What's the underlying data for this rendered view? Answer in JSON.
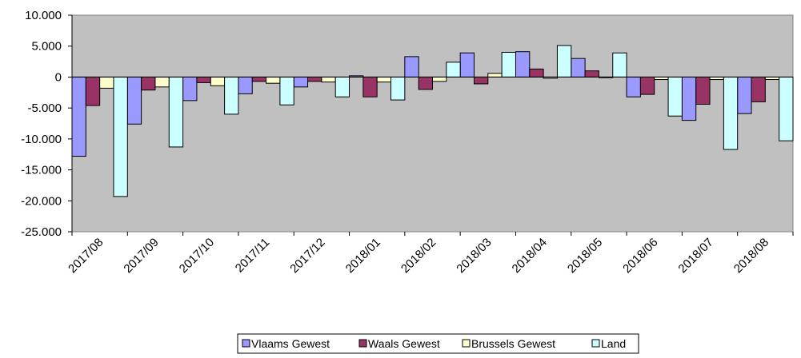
{
  "chart_data": {
    "type": "bar",
    "categories": [
      "2017/08",
      "2017/09",
      "2017/10",
      "2017/11",
      "2017/12",
      "2018/01",
      "2018/02",
      "2018/03",
      "2018/04",
      "2018/05",
      "2018/06",
      "2018/07",
      "2018/08"
    ],
    "series": [
      {
        "name": "Vlaams Gewest",
        "color": "#9999FF",
        "values": [
          -12800,
          -7600,
          -3800,
          -2700,
          -1600,
          200,
          3300,
          3900,
          4100,
          3000,
          -3200,
          -7000,
          -5900
        ]
      },
      {
        "name": "Waals Gewest",
        "color": "#993366",
        "values": [
          -4600,
          -2100,
          -900,
          -700,
          -700,
          -3200,
          -2000,
          -1100,
          1300,
          1000,
          -2800,
          -4400,
          -4000
        ]
      },
      {
        "name": "Brussels Gewest",
        "color": "#FFFFCC",
        "values": [
          -1800,
          -1600,
          -1400,
          -1000,
          -800,
          -800,
          -700,
          600,
          -200,
          -100,
          -400,
          -400,
          -400
        ]
      },
      {
        "name": "Land",
        "color": "#CCFFFF",
        "values": [
          -19300,
          -11300,
          -6000,
          -4500,
          -3200,
          -3700,
          2400,
          4000,
          5100,
          3900,
          -6300,
          -11700,
          -10300
        ]
      }
    ],
    "yticks": [
      "10.000",
      "5.000",
      "0",
      "-5.000",
      "-10.000",
      "-15.000",
      "-20.000",
      "-25.000"
    ],
    "ylim": [
      -25000,
      10000
    ],
    "grid": false,
    "plot_background": "#C0C0C0",
    "legend_position": "bottom"
  }
}
